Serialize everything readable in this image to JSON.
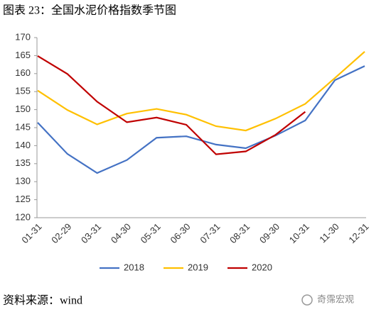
{
  "chart_data": {
    "type": "line",
    "title": "图表 23：全国水泥价格指数季节图",
    "categories": [
      "01-31",
      "02-29",
      "03-31",
      "04-30",
      "05-31",
      "06-30",
      "07-31",
      "08-31",
      "09-30",
      "10-31",
      "11-30",
      "12-31"
    ],
    "series": [
      {
        "name": "2018",
        "color": "#4472c4",
        "values": [
          146.4,
          137.7,
          132.4,
          136,
          142.2,
          142.6,
          140.3,
          139.3,
          142.8,
          147,
          158.2,
          162.1
        ]
      },
      {
        "name": "2019",
        "color": "#ffc000",
        "values": [
          155.3,
          149.9,
          145.9,
          148.9,
          150.2,
          148.6,
          145.4,
          144.2,
          147.5,
          151.6,
          158.8,
          166.1
        ]
      },
      {
        "name": "2020",
        "color": "#c00000",
        "values": [
          164.9,
          159.9,
          152.2,
          146.5,
          147.8,
          145.8,
          137.6,
          138.4,
          143,
          149.4,
          null,
          null
        ]
      }
    ],
    "ylim": [
      120,
      170
    ],
    "yticks": [
      120,
      125,
      130,
      135,
      140,
      145,
      150,
      155,
      160,
      165,
      170
    ],
    "grid": false,
    "legend": "bottom",
    "source": "资料来源：wind",
    "watermark": "奇霈宏观"
  }
}
